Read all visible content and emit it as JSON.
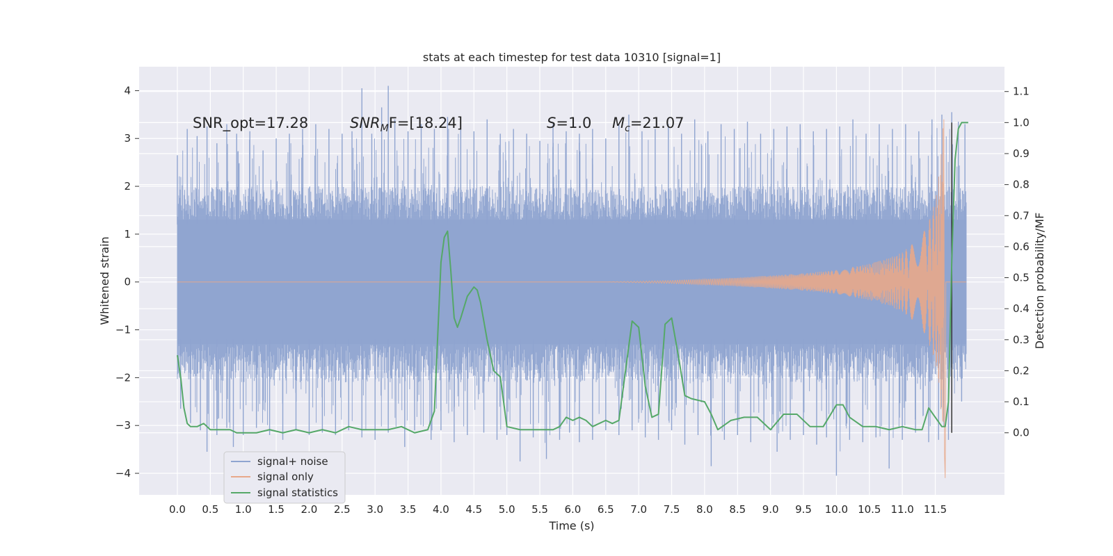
{
  "chart_data": {
    "type": "line",
    "title": "stats at each timestep for test data 10310 [signal=1]",
    "xlabel": "Time (s)",
    "ylabel_left": "Whitened strain",
    "ylabel_right": "Detection probability/MF",
    "xlim": [
      -0.58,
      12.55
    ],
    "ylim_left": [
      -4.45,
      4.5
    ],
    "ylim_right": [
      -0.2,
      1.18
    ],
    "x_ticks": [
      0.0,
      0.5,
      1.0,
      1.5,
      2.0,
      2.5,
      3.0,
      3.5,
      4.0,
      4.5,
      5.0,
      5.5,
      6.0,
      6.5,
      7.0,
      7.5,
      8.0,
      8.5,
      9.0,
      9.5,
      10.0,
      10.5,
      11.0,
      11.5
    ],
    "x_tick_labels": [
      "0.0",
      "0.5",
      "1.0",
      "1.5",
      "2.0",
      "2.5",
      "3.0",
      "3.5",
      "4.0",
      "4.5",
      "5.0",
      "5.5",
      "6.0",
      "6.5",
      "7.0",
      "7.5",
      "8.0",
      "8.5",
      "9.0",
      "9.5",
      "10.0",
      "10.5",
      "11.0",
      "11.5"
    ],
    "y_left_ticks": [
      4,
      3,
      2,
      1,
      0,
      -1,
      -2,
      -3,
      -4
    ],
    "y_left_tick_labels": [
      "4",
      "3",
      "2",
      "1",
      "0",
      "−1",
      "−2",
      "−3",
      "−4"
    ],
    "y_right_ticks": [
      1.1,
      1.0,
      0.9,
      0.8,
      0.7,
      0.6,
      0.5,
      0.4,
      0.3,
      0.2,
      0.1,
      0.0
    ],
    "y_right_tick_labels": [
      "1.1",
      "1.0",
      "0.9",
      "0.8",
      "0.7",
      "0.6",
      "0.5",
      "0.4",
      "0.3",
      "0.2",
      "0.1",
      "0.0"
    ],
    "grid": true,
    "legend_position": "bottom-left",
    "annotations": {
      "snr_opt": "SNR_opt=17.28",
      "snr_mf_sym": "SNR",
      "snr_mf_sub": "M",
      "snr_mf_rest": "F=[18.24]",
      "s_sym": "S",
      "s_rest": "=1.0",
      "mc_sym": "M",
      "mc_sub": "c",
      "mc_rest": "=21.07"
    },
    "series": [
      {
        "name": "signal+ noise",
        "axis": "left",
        "color": "#8fa4d0",
        "band_core": [
          -1.3,
          1.3
        ],
        "band_spread": [
          -2.1,
          2.0
        ],
        "spike_peaks": [
          [
            0.0,
            2.65
          ],
          [
            0.15,
            3.2
          ],
          [
            0.3,
            3.05
          ],
          [
            0.45,
            3.25
          ],
          [
            0.6,
            2.9
          ],
          [
            0.75,
            3.3
          ],
          [
            0.9,
            3.1
          ],
          [
            1.1,
            3.15
          ],
          [
            1.3,
            2.75
          ],
          [
            1.5,
            3.0
          ],
          [
            1.7,
            3.1
          ],
          [
            1.9,
            3.2
          ],
          [
            2.1,
            3.3
          ],
          [
            2.3,
            3.2
          ],
          [
            2.5,
            3.1
          ],
          [
            2.65,
            3.15
          ],
          [
            2.8,
            4.05
          ],
          [
            2.95,
            3.1
          ],
          [
            3.1,
            3.65
          ],
          [
            3.2,
            4.1
          ],
          [
            3.3,
            3.4
          ],
          [
            3.5,
            3.15
          ],
          [
            3.7,
            3.3
          ],
          [
            3.9,
            3.2
          ],
          [
            4.1,
            3.45
          ],
          [
            4.3,
            3.3
          ],
          [
            4.5,
            3.15
          ],
          [
            4.7,
            3.4
          ],
          [
            4.9,
            3.1
          ],
          [
            5.1,
            3.2
          ],
          [
            5.3,
            3.1
          ],
          [
            5.5,
            2.95
          ],
          [
            5.7,
            3.3
          ],
          [
            5.9,
            3.15
          ],
          [
            6.1,
            3.1
          ],
          [
            6.3,
            3.2
          ],
          [
            6.5,
            3.0
          ],
          [
            6.7,
            3.3
          ],
          [
            6.85,
            3.5
          ],
          [
            7.05,
            3.15
          ],
          [
            7.25,
            3.2
          ],
          [
            7.45,
            3.3
          ],
          [
            7.65,
            3.1
          ],
          [
            7.85,
            3.4
          ],
          [
            8.05,
            3.15
          ],
          [
            8.25,
            3.3
          ],
          [
            8.45,
            3.2
          ],
          [
            8.65,
            3.35
          ],
          [
            8.85,
            3.1
          ],
          [
            9.05,
            3.2
          ],
          [
            9.25,
            3.25
          ],
          [
            9.45,
            3.3
          ],
          [
            9.65,
            3.15
          ],
          [
            9.85,
            3.2
          ],
          [
            10.05,
            3.25
          ],
          [
            10.25,
            3.4
          ],
          [
            10.45,
            3.1
          ],
          [
            10.65,
            3.3
          ],
          [
            10.85,
            3.2
          ],
          [
            11.05,
            3.3
          ],
          [
            11.25,
            3.15
          ],
          [
            11.45,
            3.4
          ],
          [
            11.6,
            3.5
          ],
          [
            11.75,
            3.55
          ],
          [
            11.85,
            3.35
          ],
          [
            11.95,
            3.3
          ]
        ],
        "spike_troughs": [
          [
            0.05,
            -2.65
          ],
          [
            0.2,
            -2.95
          ],
          [
            0.35,
            -3.1
          ],
          [
            0.45,
            -3.55
          ],
          [
            0.6,
            -3.2
          ],
          [
            0.75,
            -3.05
          ],
          [
            0.85,
            -3.45
          ],
          [
            1.0,
            -3.2
          ],
          [
            1.2,
            -3.05
          ],
          [
            1.4,
            -3.2
          ],
          [
            1.6,
            -3.3
          ],
          [
            1.8,
            -3.1
          ],
          [
            2.0,
            -3.2
          ],
          [
            2.2,
            -3.15
          ],
          [
            2.4,
            -3.2
          ],
          [
            2.6,
            -3.1
          ],
          [
            2.8,
            -3.25
          ],
          [
            3.0,
            -3.3
          ],
          [
            3.2,
            -3.15
          ],
          [
            3.45,
            -3.45
          ],
          [
            3.6,
            -3.1
          ],
          [
            3.85,
            -3.3
          ],
          [
            4.0,
            -3.1
          ],
          [
            4.2,
            -3.35
          ],
          [
            4.4,
            -3.2
          ],
          [
            4.65,
            -3.15
          ],
          [
            4.85,
            -3.3
          ],
          [
            5.0,
            -3.2
          ],
          [
            5.2,
            -3.75
          ],
          [
            5.4,
            -3.25
          ],
          [
            5.6,
            -3.7
          ],
          [
            5.8,
            -3.3
          ],
          [
            5.95,
            -3.15
          ],
          [
            6.1,
            -3.35
          ],
          [
            6.3,
            -3.3
          ],
          [
            6.5,
            -3.1
          ],
          [
            6.7,
            -3.2
          ],
          [
            6.9,
            -3.1
          ],
          [
            7.1,
            -3.25
          ],
          [
            7.3,
            -3.3
          ],
          [
            7.5,
            -3.1
          ],
          [
            7.7,
            -3.4
          ],
          [
            7.9,
            -3.2
          ],
          [
            8.1,
            -3.85
          ],
          [
            8.3,
            -3.3
          ],
          [
            8.5,
            -3.2
          ],
          [
            8.7,
            -3.35
          ],
          [
            8.9,
            -3.1
          ],
          [
            9.1,
            -3.55
          ],
          [
            9.3,
            -3.3
          ],
          [
            9.5,
            -3.2
          ],
          [
            9.7,
            -3.4
          ],
          [
            9.85,
            -3.25
          ],
          [
            10.0,
            -4.05
          ],
          [
            10.2,
            -3.3
          ],
          [
            10.4,
            -3.35
          ],
          [
            10.6,
            -3.25
          ],
          [
            10.8,
            -3.9
          ],
          [
            11.0,
            -3.3
          ],
          [
            11.2,
            -3.15
          ],
          [
            11.4,
            -3.35
          ],
          [
            11.55,
            -3.3
          ],
          [
            11.7,
            -3.3
          ],
          [
            11.9,
            -2.5
          ]
        ]
      },
      {
        "name": "signal only",
        "axis": "left",
        "color": "#e8a88a",
        "envelope": [
          [
            0.0,
            0.0
          ],
          [
            6.5,
            0.0
          ],
          [
            7.5,
            0.03
          ],
          [
            8.5,
            0.09
          ],
          [
            9.5,
            0.18
          ],
          [
            10.0,
            0.25
          ],
          [
            10.5,
            0.38
          ],
          [
            10.8,
            0.5
          ],
          [
            11.0,
            0.62
          ],
          [
            11.2,
            0.85
          ],
          [
            11.35,
            1.1
          ],
          [
            11.45,
            1.45
          ],
          [
            11.52,
            1.85
          ],
          [
            11.57,
            2.4
          ],
          [
            11.6,
            3.0
          ],
          [
            11.63,
            3.4
          ]
        ],
        "tail": [
          [
            11.63,
            3.4
          ],
          [
            11.64,
            -3.6
          ],
          [
            11.65,
            -4.1
          ],
          [
            11.655,
            -3.2
          ],
          [
            11.66,
            0.0
          ]
        ]
      },
      {
        "name": "signal statistics",
        "axis": "right",
        "color": "#55a868",
        "x": [
          0.0,
          0.05,
          0.1,
          0.15,
          0.2,
          0.3,
          0.4,
          0.5,
          0.6,
          0.7,
          0.8,
          0.9,
          1.0,
          1.2,
          1.4,
          1.6,
          1.8,
          2.0,
          2.2,
          2.4,
          2.6,
          2.8,
          3.0,
          3.2,
          3.4,
          3.6,
          3.8,
          3.9,
          4.0,
          4.05,
          4.1,
          4.15,
          4.2,
          4.25,
          4.3,
          4.4,
          4.5,
          4.55,
          4.6,
          4.7,
          4.8,
          4.9,
          5.0,
          5.2,
          5.4,
          5.6,
          5.7,
          5.8,
          5.9,
          6.0,
          6.1,
          6.2,
          6.3,
          6.4,
          6.5,
          6.6,
          6.7,
          6.8,
          6.9,
          7.0,
          7.1,
          7.2,
          7.3,
          7.4,
          7.5,
          7.6,
          7.7,
          7.8,
          8.0,
          8.1,
          8.2,
          8.4,
          8.6,
          8.8,
          9.0,
          9.2,
          9.4,
          9.6,
          9.8,
          10.0,
          10.1,
          10.2,
          10.4,
          10.6,
          10.8,
          11.0,
          11.2,
          11.3,
          11.4,
          11.5,
          11.6,
          11.65,
          11.7,
          11.75,
          11.8,
          11.85,
          11.9,
          11.95,
          12.0
        ],
        "y": [
          0.25,
          0.18,
          0.08,
          0.03,
          0.02,
          0.02,
          0.03,
          0.01,
          0.01,
          0.01,
          0.01,
          0.0,
          0.0,
          0.0,
          0.01,
          0.0,
          0.01,
          0.0,
          0.01,
          0.0,
          0.02,
          0.01,
          0.01,
          0.01,
          0.02,
          0.0,
          0.01,
          0.07,
          0.55,
          0.63,
          0.65,
          0.52,
          0.37,
          0.34,
          0.37,
          0.44,
          0.47,
          0.46,
          0.42,
          0.3,
          0.2,
          0.18,
          0.02,
          0.01,
          0.01,
          0.01,
          0.01,
          0.02,
          0.05,
          0.04,
          0.05,
          0.04,
          0.02,
          0.03,
          0.04,
          0.03,
          0.04,
          0.2,
          0.36,
          0.34,
          0.15,
          0.05,
          0.06,
          0.35,
          0.37,
          0.25,
          0.12,
          0.11,
          0.1,
          0.06,
          0.01,
          0.04,
          0.05,
          0.05,
          0.01,
          0.06,
          0.06,
          0.02,
          0.02,
          0.09,
          0.09,
          0.05,
          0.02,
          0.02,
          0.01,
          0.02,
          0.01,
          0.01,
          0.08,
          0.05,
          0.02,
          0.02,
          0.1,
          0.55,
          0.88,
          0.98,
          1.0,
          1.0,
          1.0
        ]
      }
    ],
    "marker_line": {
      "x": 11.75,
      "y_right": [
        0.0,
        1.0
      ],
      "color": "#333333"
    }
  }
}
